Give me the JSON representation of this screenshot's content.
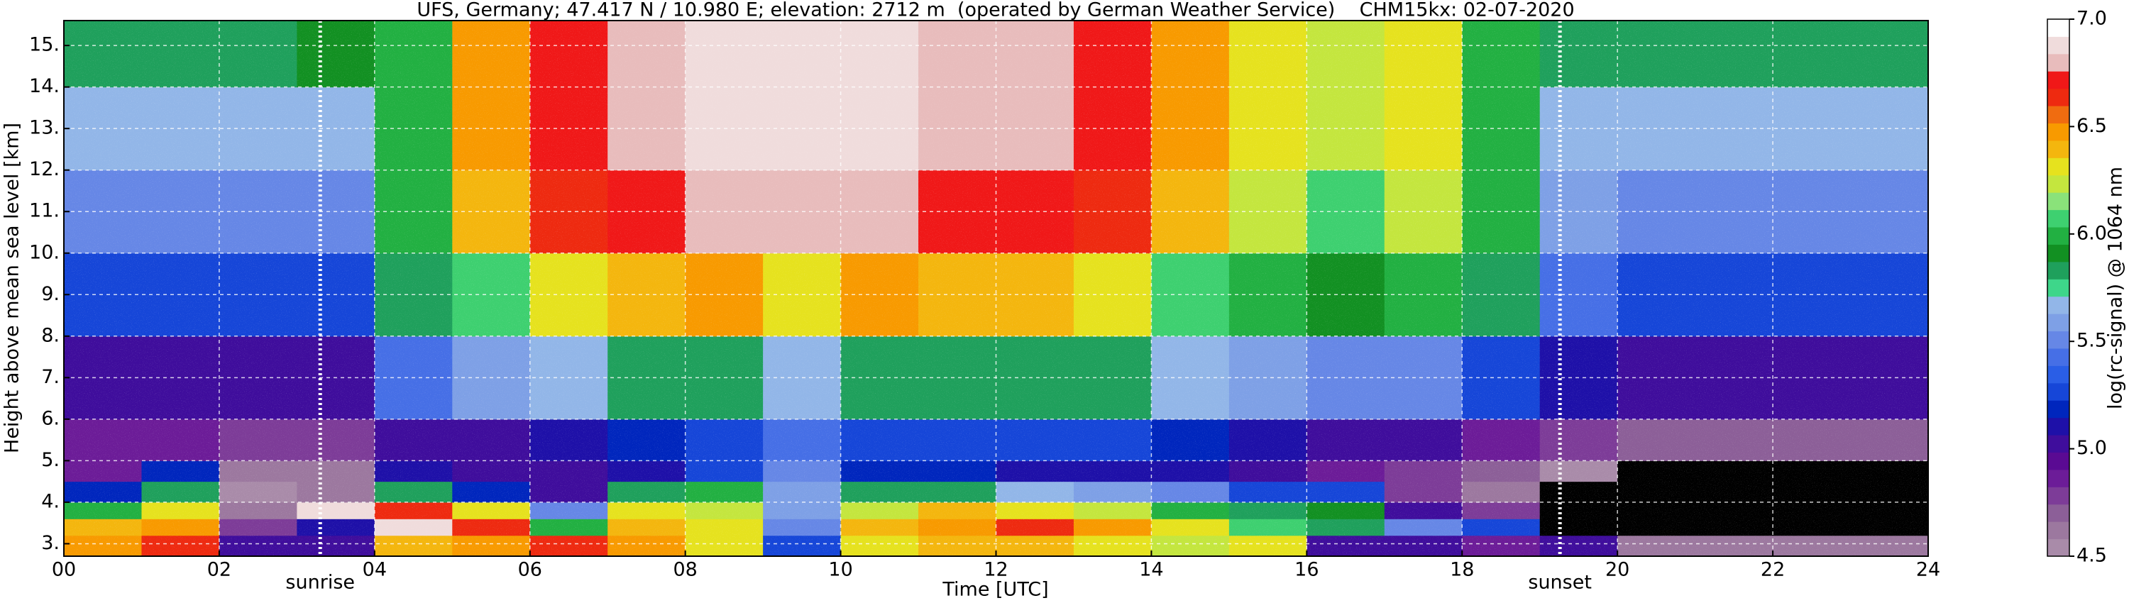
{
  "chart_data": {
    "type": "heatmap",
    "title": "UFS, Germany; 47.417 N / 10.980 E; elevation: 2712 m  (operated by German Weather Service)    CHM15kx: 02-07-2020",
    "xlabel": "Time [UTC]",
    "ylabel": "Height above mean sea level [km]",
    "xlim": [
      0,
      24
    ],
    "ylim": [
      2.7,
      15.6
    ],
    "xticks": [
      {
        "value": 0,
        "label": "00"
      },
      {
        "value": 2,
        "label": "02"
      },
      {
        "value": 4,
        "label": "04"
      },
      {
        "value": 6,
        "label": "06"
      },
      {
        "value": 8,
        "label": "08"
      },
      {
        "value": 10,
        "label": "10"
      },
      {
        "value": 12,
        "label": "12"
      },
      {
        "value": 14,
        "label": "14"
      },
      {
        "value": 16,
        "label": "16"
      },
      {
        "value": 18,
        "label": "18"
      },
      {
        "value": 20,
        "label": "20"
      },
      {
        "value": 22,
        "label": "22"
      },
      {
        "value": 24,
        "label": "24"
      }
    ],
    "yticks": [
      {
        "value": 3,
        "label": "3."
      },
      {
        "value": 4,
        "label": "4."
      },
      {
        "value": 5,
        "label": "5."
      },
      {
        "value": 6,
        "label": "6."
      },
      {
        "value": 7,
        "label": "7."
      },
      {
        "value": 8,
        "label": "8."
      },
      {
        "value": 9,
        "label": "9."
      },
      {
        "value": 10,
        "label": "10."
      },
      {
        "value": 11,
        "label": "11."
      },
      {
        "value": 12,
        "label": "12."
      },
      {
        "value": 13,
        "label": "13."
      },
      {
        "value": 14,
        "label": "14."
      },
      {
        "value": 15,
        "label": "15."
      }
    ],
    "grid": true,
    "x_bins": [
      0,
      1,
      2,
      3,
      4,
      5,
      6,
      7,
      8,
      9,
      10,
      11,
      12,
      13,
      14,
      15,
      16,
      17,
      18,
      19,
      20,
      21,
      22,
      23,
      24
    ],
    "y_bins": [
      2.7,
      3.2,
      3.6,
      4.0,
      4.5,
      5.0,
      6.0,
      8.0,
      10.0,
      12.0,
      14.0,
      15.6
    ],
    "z": [
      [
        6.5,
        6.4,
        6.0,
        5.2,
        4.9,
        4.9,
        5.0,
        5.3,
        5.5,
        5.7,
        5.8
      ],
      [
        6.6,
        6.5,
        6.3,
        5.8,
        5.2,
        4.9,
        5.0,
        5.3,
        5.5,
        5.7,
        5.8
      ],
      [
        5.0,
        4.8,
        4.6,
        4.5,
        4.6,
        4.8,
        5.0,
        5.3,
        5.5,
        5.7,
        5.8
      ],
      [
        5.0,
        5.1,
        6.9,
        4.6,
        4.6,
        4.8,
        5.0,
        5.3,
        5.5,
        5.7,
        5.9
      ],
      [
        6.4,
        6.9,
        6.6,
        5.8,
        5.1,
        5.0,
        5.4,
        5.8,
        6.0,
        6.0,
        6.0
      ],
      [
        6.5,
        6.6,
        6.3,
        5.2,
        5.0,
        5.0,
        5.6,
        6.1,
        6.4,
        6.5,
        6.5
      ],
      [
        6.6,
        6.0,
        5.5,
        5.0,
        5.0,
        5.1,
        5.7,
        6.3,
        6.6,
        6.7,
        6.7
      ],
      [
        6.5,
        6.4,
        6.3,
        5.8,
        5.1,
        5.2,
        5.8,
        6.4,
        6.7,
        6.8,
        6.8
      ],
      [
        6.3,
        6.3,
        6.2,
        6.0,
        5.3,
        5.3,
        5.8,
        6.5,
        6.8,
        6.9,
        6.9
      ],
      [
        5.3,
        5.5,
        5.6,
        5.6,
        5.5,
        5.4,
        5.7,
        6.3,
        6.8,
        6.9,
        6.9
      ],
      [
        6.3,
        6.4,
        6.2,
        5.8,
        5.2,
        5.3,
        5.8,
        6.5,
        6.8,
        6.9,
        6.9
      ],
      [
        6.4,
        6.5,
        6.4,
        5.8,
        5.2,
        5.3,
        5.8,
        6.4,
        6.7,
        6.8,
        6.8
      ],
      [
        6.4,
        6.6,
        6.3,
        5.7,
        5.1,
        5.3,
        5.8,
        6.4,
        6.7,
        6.8,
        6.8
      ],
      [
        6.3,
        6.5,
        6.2,
        5.6,
        5.1,
        5.3,
        5.8,
        6.3,
        6.6,
        6.7,
        6.7
      ],
      [
        6.2,
        6.3,
        6.0,
        5.5,
        5.1,
        5.2,
        5.7,
        6.1,
        6.4,
        6.5,
        6.5
      ],
      [
        6.3,
        6.1,
        5.8,
        5.3,
        5.0,
        5.1,
        5.6,
        6.0,
        6.2,
        6.3,
        6.3
      ],
      [
        5.0,
        5.8,
        5.9,
        5.3,
        4.9,
        5.0,
        5.5,
        5.9,
        6.1,
        6.2,
        6.2
      ],
      [
        5.0,
        5.5,
        5.0,
        4.8,
        4.8,
        5.0,
        5.5,
        6.0,
        6.2,
        6.3,
        6.3
      ],
      [
        4.9,
        5.3,
        4.8,
        4.6,
        4.7,
        4.9,
        5.3,
        5.8,
        6.0,
        6.0,
        6.0
      ],
      [
        5.0,
        4.4,
        4.4,
        4.4,
        4.5,
        4.8,
        5.1,
        5.4,
        5.6,
        5.7,
        5.8
      ],
      [
        4.6,
        4.4,
        4.4,
        4.4,
        4.4,
        4.7,
        5.0,
        5.3,
        5.5,
        5.7,
        5.8
      ],
      [
        4.6,
        4.4,
        4.4,
        4.4,
        4.4,
        4.7,
        5.0,
        5.3,
        5.5,
        5.7,
        5.8
      ],
      [
        4.6,
        4.4,
        4.4,
        4.4,
        4.4,
        4.7,
        5.0,
        5.3,
        5.5,
        5.7,
        5.8
      ],
      [
        4.6,
        4.4,
        4.4,
        4.4,
        4.4,
        4.7,
        5.0,
        5.3,
        5.5,
        5.7,
        5.8
      ]
    ],
    "under_color": "#000000",
    "colorbar": {
      "label": "log(rc-signal) @ 1064 nm",
      "lim": [
        4.5,
        7.0
      ],
      "ticks": [
        4.5,
        {
          "value": 5,
          "label": "5.0"
        },
        5.5,
        {
          "value": 6,
          "label": "6.0"
        },
        6.5,
        {
          "value": 7,
          "label": "7.0"
        }
      ],
      "colors": [
        "#a98ba9",
        "#9c789f",
        "#8c5f98",
        "#7d3c98",
        "#6c1c98",
        "#5a0a93",
        "#3f0d9c",
        "#1e10a8",
        "#0026bd",
        "#1646d8",
        "#2a5ee6",
        "#466fe6",
        "#6687e6",
        "#7ea0e6",
        "#92b6e8",
        "#3ed68a",
        "#1fa05c",
        "#129022",
        "#22b042",
        "#3ed070",
        "#8ae27a",
        "#c4e63e",
        "#e6e21e",
        "#f4b60e",
        "#f89a00",
        "#f06c10",
        "#ee2a10",
        "#f01818",
        "#e8bcbc",
        "#f0dcdc",
        "#ffffff"
      ]
    },
    "annotations": [
      {
        "x": 3.3,
        "text": "sunrise"
      },
      {
        "x": 19.26,
        "text": "sunset"
      }
    ]
  }
}
